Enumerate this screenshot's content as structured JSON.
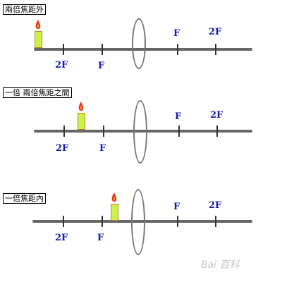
{
  "panels": [
    {
      "caption": "兩倍焦距外",
      "left_labels": {
        "two_f": "2F",
        "f": "F"
      },
      "right_labels": {
        "f": "F",
        "two_f": "2F"
      },
      "object_position": "beyond 2F"
    },
    {
      "caption": "一倍 兩倍焦距之間",
      "left_labels": {
        "two_f": "2F",
        "f": "F"
      },
      "right_labels": {
        "f": "F",
        "two_f": "2F"
      },
      "object_position": "between F and 2F"
    },
    {
      "caption": "一倍焦距內",
      "left_labels": {
        "two_f": "2F",
        "f": "F"
      },
      "right_labels": {
        "f": "F",
        "two_f": "2F"
      },
      "object_position": "inside F"
    }
  ],
  "watermark": "Bai 百科",
  "colors": {
    "axis": "#666666",
    "label": "#1a1aa8",
    "candle": "#ccf24a",
    "flame": "#e63b1f"
  }
}
